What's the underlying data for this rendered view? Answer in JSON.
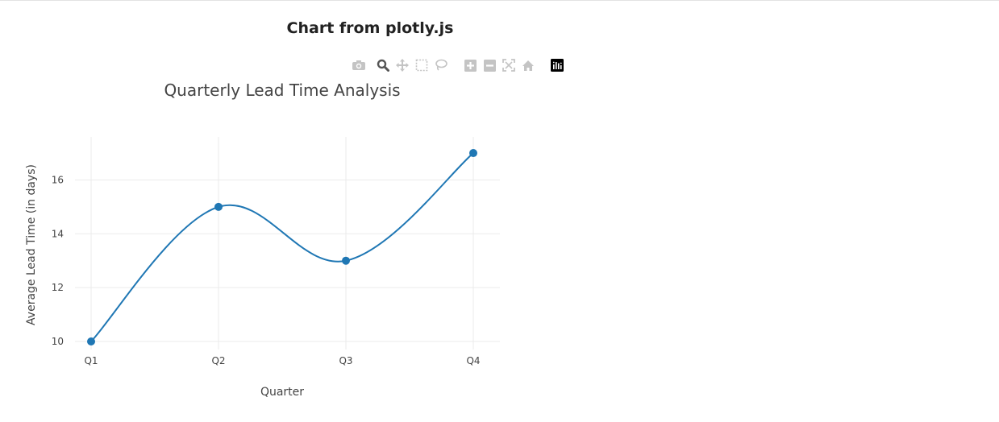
{
  "page": {
    "title": "Chart from plotly.js"
  },
  "toolbar": {
    "buttons": [
      {
        "name": "camera-icon",
        "color": "#c4c4c4"
      },
      {
        "name": "zoom-icon",
        "color": "#555555"
      },
      {
        "name": "pan-icon",
        "color": "#c4c4c4"
      },
      {
        "name": "box-select-icon",
        "color": "#c4c4c4"
      },
      {
        "name": "lasso-select-icon",
        "color": "#c4c4c4"
      },
      {
        "name": "zoom-in-icon",
        "color": "#c4c4c4"
      },
      {
        "name": "zoom-out-icon",
        "color": "#c4c4c4"
      },
      {
        "name": "autoscale-icon",
        "color": "#c4c4c4"
      },
      {
        "name": "reset-axes-icon",
        "color": "#c4c4c4"
      },
      {
        "name": "plotly-logo-icon",
        "color": "#000000"
      }
    ]
  },
  "chart_data": {
    "type": "line",
    "title": "Quarterly Lead Time Analysis",
    "xlabel": "Quarter",
    "ylabel": "Average Lead Time (in days)",
    "categories": [
      "Q1",
      "Q2",
      "Q3",
      "Q4"
    ],
    "series": [
      {
        "values": [
          10,
          15,
          13,
          17
        ],
        "color": "#1f77b4",
        "line_shape": "spline",
        "mode": "lines+markers"
      }
    ],
    "yticks": [
      10,
      12,
      14,
      16
    ],
    "ylim": [
      9.7,
      17.6
    ],
    "grid": true,
    "legend": "none"
  }
}
